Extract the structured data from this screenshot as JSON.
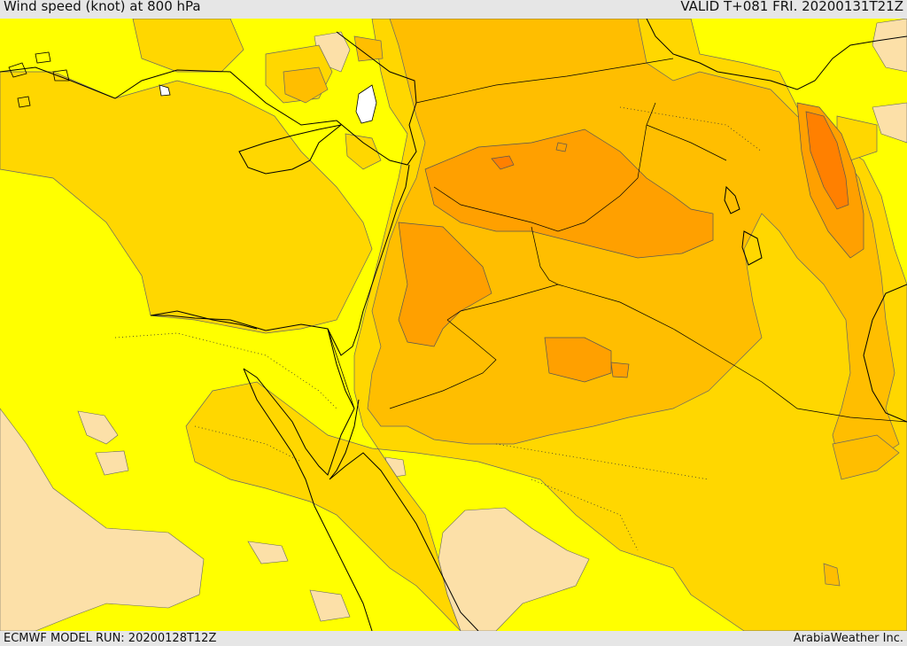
{
  "header": {
    "title": "Wind speed (knot) at 800 hPa",
    "valid": "VALID T+081 FRI. 20200131T21Z"
  },
  "footer": {
    "model_run": "ECMWF MODEL RUN: 20200128T12Z",
    "credit": "ArabiaWeather Inc."
  },
  "map": {
    "palette": {
      "weak": "#fce0a8",
      "light": "#ffff00",
      "moderate": "#ffd700",
      "fresh": "#ffbe00",
      "strong": "#ffa000",
      "very_strong": "#ff8000",
      "water": "#ffffff",
      "coastline": "#000000",
      "contour": "#555555"
    }
  }
}
